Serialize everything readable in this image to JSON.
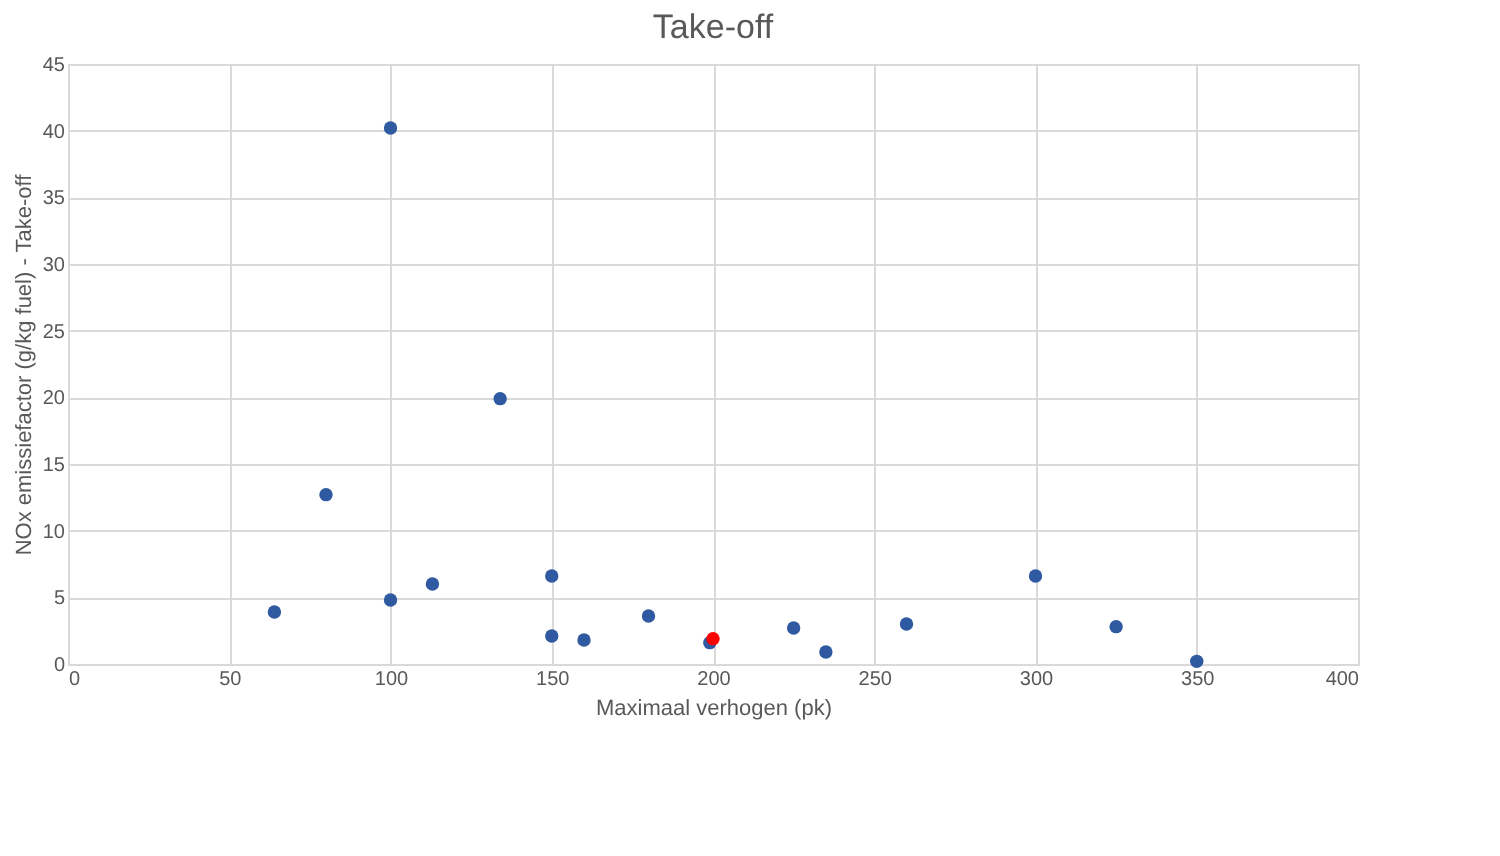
{
  "chart_data": {
    "type": "scatter",
    "title": "Take-off",
    "xlabel": "Maximaal verhogen (pk)",
    "ylabel": "NOx emissiefactor (g/kg fuel) - Take-off",
    "series": [
      {
        "color": "#2f59a0",
        "x": [
          64,
          80,
          100,
          100,
          113,
          134,
          150,
          150,
          160,
          180,
          199,
          225,
          235,
          260,
          300,
          325,
          350
        ],
        "values": [
          3.9,
          12.7,
          40.2,
          4.8,
          6.0,
          19.9,
          6.6,
          2.1,
          1.8,
          3.6,
          1.6,
          2.7,
          0.9,
          3.0,
          6.6,
          2.8,
          0.2
        ]
      },
      {
        "color": "#ff0000",
        "x": [
          200
        ],
        "values": [
          1.9
        ]
      }
    ],
    "xlim": [
      0,
      400
    ],
    "xticks": [
      0,
      50,
      100,
      150,
      200,
      250,
      300,
      350,
      400
    ],
    "ylim": [
      0,
      45
    ],
    "yticks": [
      0,
      5,
      10,
      15,
      20,
      25,
      30,
      35,
      40,
      45
    ],
    "grid": true,
    "marker": "circle",
    "legend": false
  }
}
